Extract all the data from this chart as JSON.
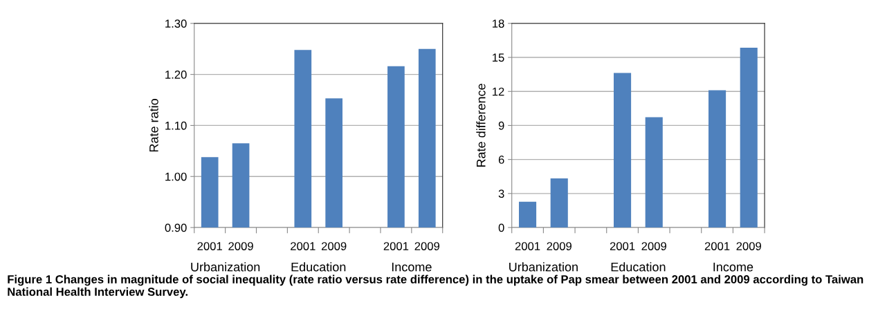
{
  "chart_data": [
    {
      "type": "bar",
      "ylabel": "Rate ratio",
      "categories": [
        "2001",
        "2009",
        null,
        "2001",
        "2009",
        null,
        "2001",
        "2009"
      ],
      "values": [
        1.038,
        1.065,
        null,
        1.248,
        1.153,
        null,
        1.216,
        1.25
      ],
      "color": "#4f81bd",
      "ylim": [
        0.9,
        1.3
      ],
      "yticks": [
        {
          "value": 0.9,
          "label": "0.90"
        },
        {
          "value": 1.0,
          "label": "1.00"
        },
        {
          "value": 1.1,
          "label": "1.10"
        },
        {
          "value": 1.2,
          "label": "1.20"
        },
        {
          "value": 1.3,
          "label": "1.30"
        }
      ],
      "grid": "y",
      "annotations": [
        "Urbanization",
        "Education",
        "Income",
        "Figure 1 Changes in magnitude of social inequality (rate ratio versus rate difference) in the uptake of Pap smear between 2001 and 2009 according to Taiwan National Health Interview Survey."
      ]
    },
    {
      "type": "bar",
      "ylabel": "Rate difference",
      "categories": [
        "2001",
        "2009",
        null,
        "2001",
        "2009",
        null,
        "2001",
        "2009"
      ],
      "values": [
        2.28,
        4.33,
        null,
        13.63,
        9.73,
        null,
        12.11,
        15.85
      ],
      "color": "#4f81bd",
      "ylim": [
        0,
        18
      ],
      "yticks": [
        0,
        3,
        6,
        9,
        12,
        15,
        18
      ],
      "grid": "y",
      "annotations": [
        "Urbanization",
        "Education",
        "Income"
      ]
    }
  ]
}
